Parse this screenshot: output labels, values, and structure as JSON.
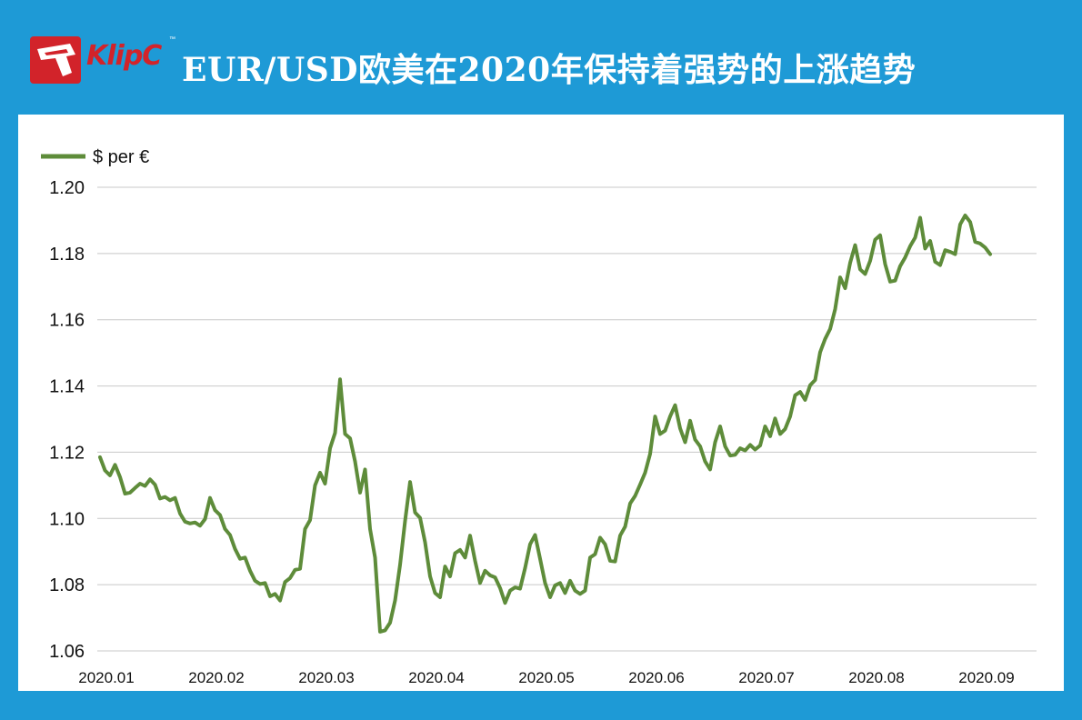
{
  "header": {
    "title": "EUR/USD欧美在2020年保持着强势的上涨趋势",
    "logo": {
      "text": "KlipC",
      "trademark": "™",
      "icon": "klipc-logo-icon",
      "brand_color": "#d2232a"
    }
  },
  "colors": {
    "background": "#1e9ad6",
    "panel": "#ffffff",
    "series": "#5e8c3a",
    "grid": "#c8c8c8"
  },
  "chart_data": {
    "type": "line",
    "title": "",
    "xlabel": "",
    "ylabel": "",
    "ylim": [
      1.06,
      1.2
    ],
    "yticks": [
      "1.06",
      "1.08",
      "1.10",
      "1.12",
      "1.14",
      "1.16",
      "1.18",
      "1.20"
    ],
    "xticks": [
      "2020.01",
      "2020.02",
      "2020.03",
      "2020.04",
      "2020.05",
      "2020.06",
      "2020.07",
      "2020.08",
      "2020.09"
    ],
    "grid": true,
    "legend_position": "top-left",
    "series": [
      {
        "name": "$ per €",
        "color": "#5e8c3a",
        "values": [
          1.1185,
          1.1145,
          1.113,
          1.1162,
          1.1125,
          1.1075,
          1.1078,
          1.1092,
          1.1105,
          1.1098,
          1.1118,
          1.1102,
          1.106,
          1.1065,
          1.1055,
          1.1062,
          1.1015,
          1.099,
          1.0985,
          1.0988,
          1.0978,
          1.0998,
          1.1062,
          1.1025,
          1.101,
          1.0968,
          1.095,
          1.0908,
          1.0878,
          1.0882,
          1.0842,
          1.0812,
          1.0802,
          1.0805,
          1.0765,
          1.0772,
          1.0752,
          1.0808,
          1.082,
          1.0845,
          1.0848,
          1.0968,
          1.0995,
          1.11,
          1.1138,
          1.1105,
          1.1212,
          1.1258,
          1.142,
          1.1255,
          1.1242,
          1.1172,
          1.1078,
          1.1148,
          1.0968,
          1.0882,
          1.0658,
          1.0662,
          1.0685,
          1.0752,
          1.086,
          1.0992,
          1.111,
          1.1018,
          1.1002,
          1.0928,
          1.0825,
          1.0775,
          1.0762,
          1.0855,
          1.0825,
          1.0895,
          1.0905,
          1.0882,
          1.0948,
          1.0872,
          1.0805,
          1.0842,
          1.0828,
          1.0822,
          1.079,
          1.0745,
          1.0782,
          1.0792,
          1.0788,
          1.085,
          1.0922,
          1.095,
          1.0878,
          1.0805,
          1.0762,
          1.0798,
          1.0805,
          1.0775,
          1.0812,
          1.0782,
          1.0772,
          1.0782,
          1.0882,
          1.0892,
          1.0942,
          1.0922,
          1.0872,
          1.087,
          1.0948,
          1.0975,
          1.1045,
          1.1068,
          1.1102,
          1.1138,
          1.1195,
          1.1308,
          1.1255,
          1.1265,
          1.1308,
          1.1342,
          1.1272,
          1.123,
          1.1295,
          1.1238,
          1.1218,
          1.1172,
          1.1148,
          1.123,
          1.1278,
          1.1218,
          1.119,
          1.1192,
          1.1212,
          1.1205,
          1.1222,
          1.1208,
          1.122,
          1.1278,
          1.1248,
          1.1302,
          1.1255,
          1.127,
          1.1308,
          1.1372,
          1.1382,
          1.1358,
          1.1402,
          1.1418,
          1.1502,
          1.1542,
          1.1572,
          1.1632,
          1.1728,
          1.1695,
          1.1772,
          1.1825,
          1.1752,
          1.1738,
          1.1778,
          1.1842,
          1.1855,
          1.1768,
          1.1715,
          1.1718,
          1.1762,
          1.1788,
          1.1822,
          1.1848,
          1.1908,
          1.1815,
          1.1838,
          1.1775,
          1.1765,
          1.181,
          1.1805,
          1.1798,
          1.1888,
          1.1915,
          1.1895,
          1.1835,
          1.183,
          1.1818,
          1.1798
        ]
      }
    ]
  }
}
